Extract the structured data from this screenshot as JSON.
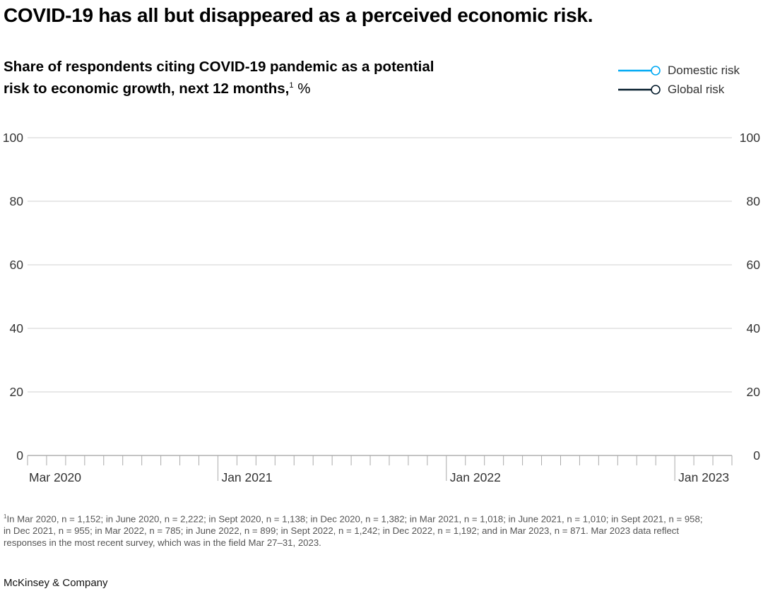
{
  "title": "COVID-19 has all but disappeared as a perceived economic risk.",
  "subtitle": "Share of respondents citing COVID-19 pandemic as a potential risk to economic growth, next 12 months,",
  "subtitle_footnote_marker": "1",
  "subtitle_unit": " %",
  "legend": [
    {
      "label": "Domestic risk",
      "color": "#00a9f4"
    },
    {
      "label": "Global risk",
      "color": "#051c2c"
    }
  ],
  "chart_data": {
    "type": "line",
    "title": "",
    "xlabel": "",
    "ylabel": "",
    "ylim": [
      0,
      100
    ],
    "y_ticks": [
      "0",
      "20",
      "40",
      "60",
      "80",
      "100"
    ],
    "y_axis_sides": "both",
    "x_range": [
      "Mar 2020",
      "Apr 2023"
    ],
    "x_tick_interval": "monthly",
    "x_tick_labels": [
      "Mar 2020",
      "Jan 2021",
      "Jan 2022",
      "Jan 2023"
    ],
    "grid": true,
    "legend_position": "top-right",
    "series": [
      {
        "name": "Domestic risk",
        "color": "#00a9f4",
        "values": []
      },
      {
        "name": "Global risk",
        "color": "#051c2c",
        "values": []
      }
    ]
  },
  "footnote": {
    "marker": "1",
    "text": "In Mar 2020, n = 1,152; in June 2020, n = 2,222; in Sept 2020, n = 1,138; in Dec 2020, n = 1,382; in Mar 2021, n = 1,018; in June 2021, n = 1,010; in Sept 2021, n = 958; in Dec 2021, n = 955; in Mar 2022, n = 785; in June 2022, n = 899; in Sept 2022, n = 1,242; in Dec 2022, n = 1,192; and in Mar 2023, n = 871. Mar 2023 data reflect responses in the most recent survey, which was in the field Mar 27–31, 2023."
  },
  "brand": "McKinsey & Company"
}
